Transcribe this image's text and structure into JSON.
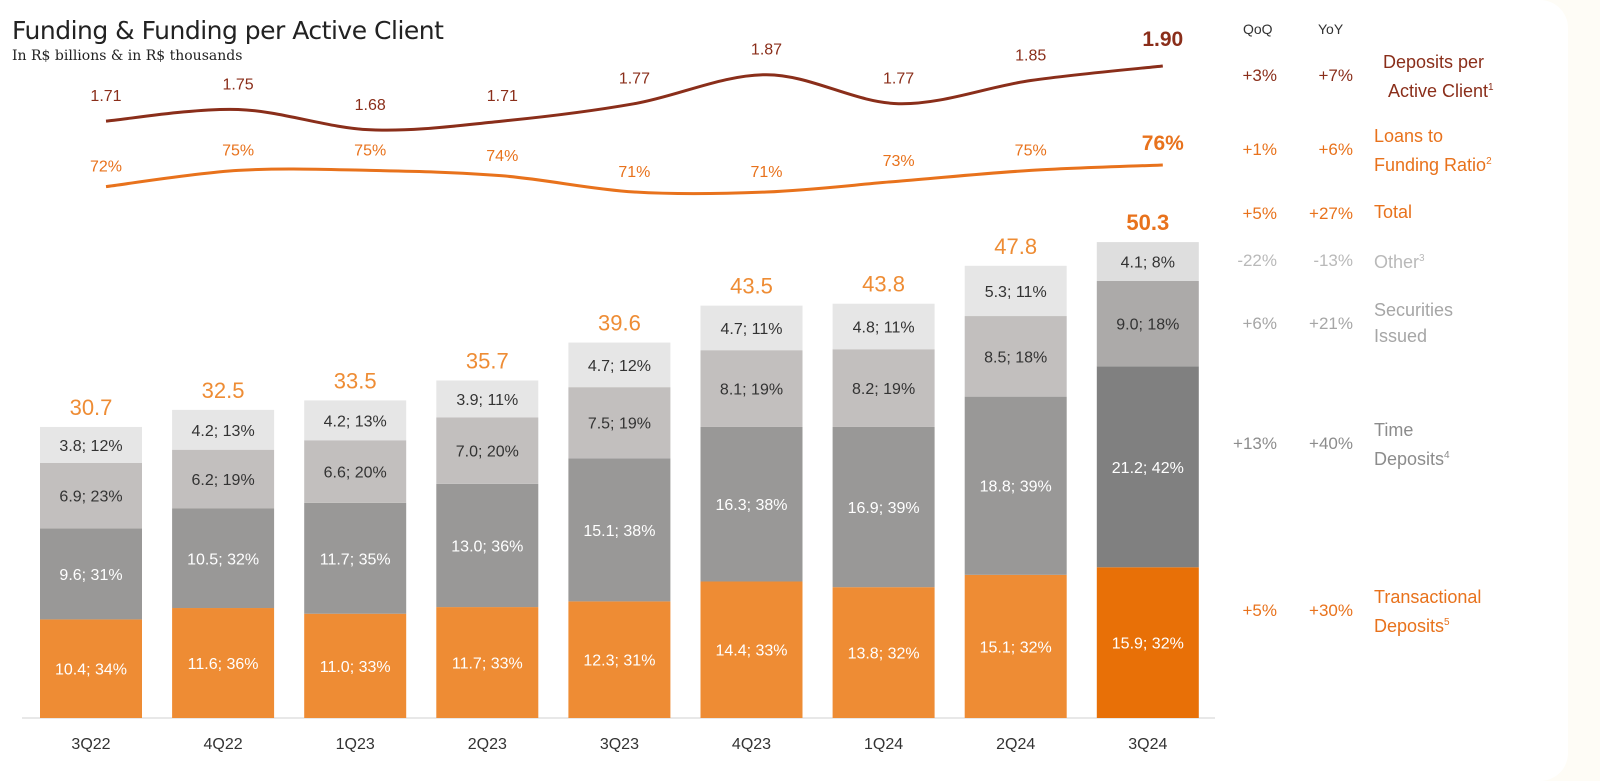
{
  "title": "Funding & Funding per Active Client",
  "subtitle": "In R$ billions & in R$ thousands",
  "table_headers": {
    "qoq": "QoQ",
    "yoy": "YoY"
  },
  "rows": [
    {
      "key": "deposits_per_client",
      "line1": "Deposits per",
      "line2": "Active Client",
      "sup": "1",
      "qoq": "+3%",
      "yoy": "+7%",
      "color": "#8a2e1a"
    },
    {
      "key": "ltf",
      "line1": "Loans to",
      "line2": "Funding Ratio",
      "sup": "2",
      "qoq": "+1%",
      "yoy": "+6%",
      "color": "#e8721c"
    },
    {
      "key": "total",
      "line1": "Total",
      "line2": "",
      "sup": "",
      "qoq": "+5%",
      "yoy": "+27%",
      "color": "#e8721c"
    },
    {
      "key": "other",
      "line1": "Other",
      "line2": "",
      "sup": "3",
      "qoq": "-22%",
      "yoy": "-13%",
      "color": "#b9b9b9"
    },
    {
      "key": "securities",
      "line1": "Securities",
      "line2": "Issued",
      "sup": "",
      "qoq": "+6%",
      "yoy": "+21%",
      "color": "#a6a6a6"
    },
    {
      "key": "time",
      "line1": "Time",
      "line2": "Deposits",
      "sup": "4",
      "qoq": "+13%",
      "yoy": "+40%",
      "color": "#8c8c8c"
    },
    {
      "key": "transactional",
      "line1": "Transactional",
      "line2": "Deposits",
      "sup": "5",
      "qoq": "+5%",
      "yoy": "+30%",
      "color": "#e8721c"
    }
  ],
  "chart_data": {
    "type": "bar",
    "stacked": true,
    "categories": [
      "3Q22",
      "4Q22",
      "1Q23",
      "2Q23",
      "3Q23",
      "4Q23",
      "1Q24",
      "2Q24",
      "3Q24"
    ],
    "totals": [
      30.7,
      32.5,
      33.5,
      35.7,
      39.6,
      43.5,
      43.8,
      47.8,
      50.3
    ],
    "series": [
      {
        "name": "Transactional Deposits",
        "values": [
          10.4,
          11.6,
          11.0,
          11.7,
          12.3,
          14.4,
          13.8,
          15.1,
          15.9
        ],
        "labels": [
          "10.4; 34%",
          "11.6; 36%",
          "11.0; 33%",
          "11.7; 33%",
          "12.3; 31%",
          "14.4; 33%",
          "13.8; 32%",
          "15.1; 32%",
          "15.9; 32%"
        ],
        "color": "#ee8c34",
        "color_last": "#e87007"
      },
      {
        "name": "Time Deposits",
        "values": [
          9.6,
          10.5,
          11.7,
          13.0,
          15.1,
          16.3,
          16.9,
          18.8,
          21.2
        ],
        "labels": [
          "9.6; 31%",
          "10.5; 32%",
          "11.7; 35%",
          "13.0; 36%",
          "15.1; 38%",
          "16.3; 38%",
          "16.9; 39%",
          "18.8; 39%",
          "21.2; 42%"
        ],
        "color": "#999897",
        "color_last": "#808080"
      },
      {
        "name": "Securities Issued",
        "values": [
          6.9,
          6.2,
          6.6,
          7.0,
          7.5,
          8.1,
          8.2,
          8.5,
          9.0
        ],
        "labels": [
          "6.9; 23%",
          "6.2; 19%",
          "6.6; 20%",
          "7.0; 20%",
          "7.5; 19%",
          "8.1; 19%",
          "8.2; 19%",
          "8.5; 18%",
          "9.0; 18%"
        ],
        "color": "#c2bfbe",
        "color_last": "#acaaa9"
      },
      {
        "name": "Other",
        "values": [
          3.8,
          4.2,
          4.2,
          3.9,
          4.7,
          4.7,
          4.8,
          5.3,
          4.1
        ],
        "labels": [
          "3.8; 12%",
          "4.2; 13%",
          "4.2; 13%",
          "3.9; 11%",
          "4.7; 12%",
          "4.7; 11%",
          "4.8; 11%",
          "5.3; 11%",
          "4.1; 8%"
        ],
        "color": "#e6e6e6",
        "color_last": "#dedede"
      }
    ],
    "lines": [
      {
        "name": "Deposits per Active Client",
        "values": [
          1.71,
          1.75,
          1.68,
          1.71,
          1.77,
          1.87,
          1.77,
          1.85,
          1.9
        ],
        "labels": [
          "1.71",
          "1.75",
          "1.68",
          "1.71",
          "1.77",
          "1.87",
          "1.77",
          "1.85",
          "1.90"
        ],
        "color": "#8a2e1a"
      },
      {
        "name": "Loans to Funding Ratio",
        "values": [
          72,
          75,
          75,
          74,
          71,
          71,
          73,
          75,
          76
        ],
        "labels": [
          "72%",
          "75%",
          "75%",
          "74%",
          "71%",
          "71%",
          "73%",
          "75%",
          "76%"
        ],
        "color": "#e8721c"
      }
    ]
  }
}
